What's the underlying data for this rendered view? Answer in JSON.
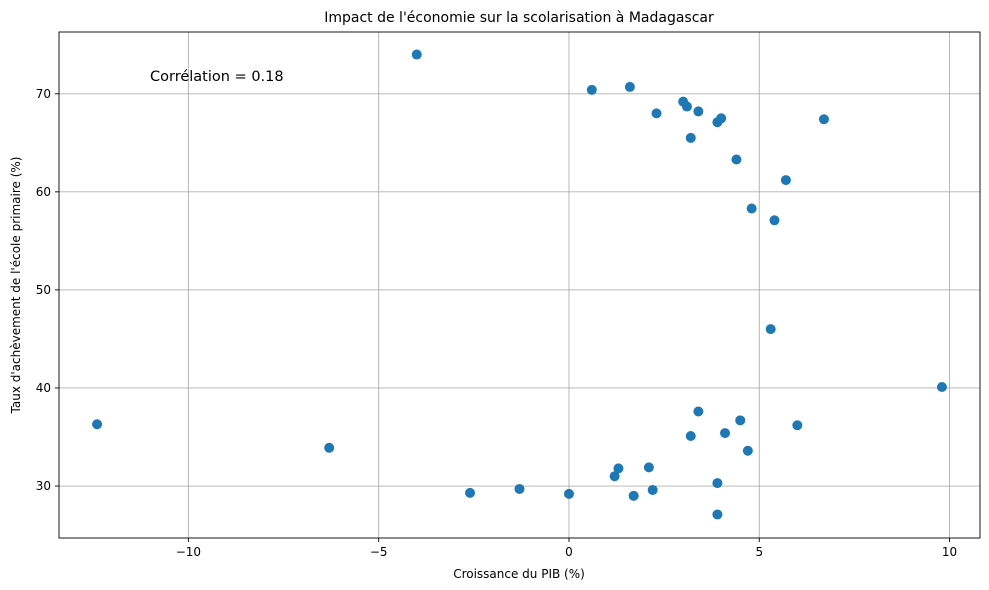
{
  "chart_data": {
    "type": "scatter",
    "title": "Impact de l'économie sur la scolarisation à Madagascar",
    "xlabel": "Croissance du PIB (%)",
    "ylabel": "Taux d'achèvement de l'école primaire (%)",
    "annotation": "Corrélation = 0.18",
    "xlim": [
      -13.4,
      10.8
    ],
    "ylim": [
      24.7,
      76.3
    ],
    "xticks": [
      -10,
      -5,
      0,
      5,
      10
    ],
    "yticks": [
      30,
      40,
      50,
      60,
      70
    ],
    "xtick_labels": [
      "−10",
      "−5",
      "0",
      "5",
      "10"
    ],
    "ytick_labels": [
      "30",
      "40",
      "50",
      "60",
      "70"
    ],
    "grid": true,
    "marker_color": "#1f77b4",
    "points": [
      {
        "x": -12.4,
        "y": 36.3
      },
      {
        "x": -6.3,
        "y": 33.9
      },
      {
        "x": -4.0,
        "y": 74.0
      },
      {
        "x": -2.6,
        "y": 29.3
      },
      {
        "x": -1.3,
        "y": 29.7
      },
      {
        "x": 0.0,
        "y": 29.2
      },
      {
        "x": 0.6,
        "y": 70.4
      },
      {
        "x": 1.2,
        "y": 31.0
      },
      {
        "x": 1.3,
        "y": 31.8
      },
      {
        "x": 1.6,
        "y": 70.7
      },
      {
        "x": 1.7,
        "y": 29.0
      },
      {
        "x": 2.1,
        "y": 31.9
      },
      {
        "x": 2.2,
        "y": 29.6
      },
      {
        "x": 2.3,
        "y": 68.0
      },
      {
        "x": 3.0,
        "y": 69.2
      },
      {
        "x": 3.1,
        "y": 68.7
      },
      {
        "x": 3.2,
        "y": 35.1
      },
      {
        "x": 3.2,
        "y": 65.5
      },
      {
        "x": 3.4,
        "y": 68.2
      },
      {
        "x": 3.4,
        "y": 37.6
      },
      {
        "x": 3.9,
        "y": 30.3
      },
      {
        "x": 3.9,
        "y": 27.1
      },
      {
        "x": 3.9,
        "y": 67.1
      },
      {
        "x": 4.0,
        "y": 67.5
      },
      {
        "x": 4.1,
        "y": 35.4
      },
      {
        "x": 4.4,
        "y": 63.3
      },
      {
        "x": 4.5,
        "y": 36.7
      },
      {
        "x": 4.7,
        "y": 33.6
      },
      {
        "x": 4.8,
        "y": 58.3
      },
      {
        "x": 5.3,
        "y": 46.0
      },
      {
        "x": 5.4,
        "y": 57.1
      },
      {
        "x": 5.7,
        "y": 61.2
      },
      {
        "x": 6.0,
        "y": 36.2
      },
      {
        "x": 6.7,
        "y": 67.4
      },
      {
        "x": 9.8,
        "y": 40.1
      }
    ]
  }
}
